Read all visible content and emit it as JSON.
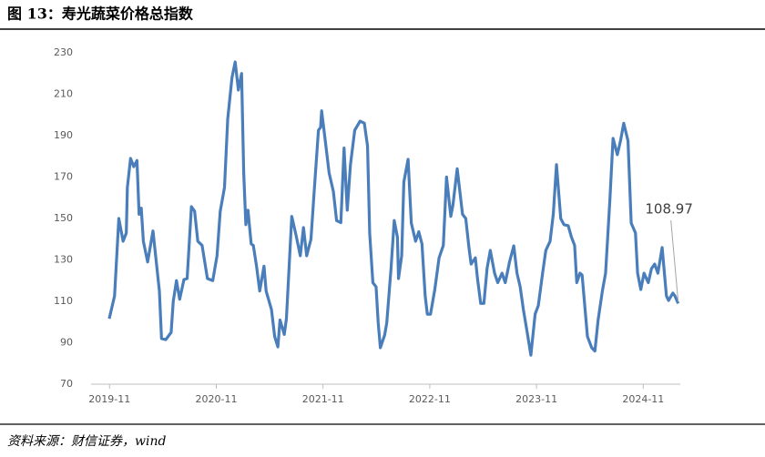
{
  "chart_data": {
    "type": "line",
    "title": "图 13：寿光蔬菜价格总指数",
    "source": "资料来源：财信证券，wind",
    "x": [
      2019.83,
      2019.88,
      2019.92,
      2019.96,
      2019.99,
      2020.0,
      2020.03,
      2020.06,
      2020.09,
      2020.11,
      2020.13,
      2020.15,
      2020.19,
      2020.24,
      2020.3,
      2020.32,
      2020.36,
      2020.41,
      2020.43,
      2020.46,
      2020.49,
      2020.53,
      2020.56,
      2020.6,
      2020.63,
      2020.66,
      2020.7,
      2020.75,
      2020.8,
      2020.84,
      2020.87,
      2020.91,
      2020.94,
      2020.98,
      2021.01,
      2021.04,
      2021.07,
      2021.09,
      2021.11,
      2021.13,
      2021.16,
      2021.18,
      2021.21,
      2021.24,
      2021.28,
      2021.3,
      2021.35,
      2021.38,
      2021.41,
      2021.43,
      2021.47,
      2021.49,
      2021.54,
      2021.58,
      2021.62,
      2021.65,
      2021.68,
      2021.72,
      2021.75,
      2021.79,
      2021.81,
      2021.82,
      2021.86,
      2021.89,
      2021.93,
      2021.96,
      2022.0,
      2022.03,
      2022.06,
      2022.09,
      2022.13,
      2022.18,
      2022.22,
      2022.25,
      2022.27,
      2022.3,
      2022.33,
      2022.35,
      2022.37,
      2022.41,
      2022.43,
      2022.47,
      2022.5,
      2022.53,
      2022.54,
      2022.57,
      2022.59,
      2022.63,
      2022.66,
      2022.7,
      2022.73,
      2022.76,
      2022.79,
      2022.81,
      2022.84,
      2022.88,
      2022.92,
      2022.96,
      2022.99,
      2023.03,
      2023.05,
      2023.09,
      2023.14,
      2023.17,
      2023.2,
      2023.22,
      2023.26,
      2023.28,
      2023.31,
      2023.34,
      2023.37,
      2023.4,
      2023.44,
      2023.47,
      2023.51,
      2023.54,
      2023.58,
      2023.62,
      2023.65,
      2023.68,
      2023.71,
      2023.75,
      2023.78,
      2023.82,
      2023.85,
      2023.89,
      2023.92,
      2023.96,
      2023.99,
      2024.02,
      2024.06,
      2024.09,
      2024.13,
      2024.16,
      2024.19,
      2024.21,
      2024.24,
      2024.26,
      2024.31,
      2024.35,
      2024.38,
      2024.41,
      2024.45,
      2024.48,
      2024.52,
      2024.55,
      2024.59,
      2024.62,
      2024.65,
      2024.69,
      2024.72,
      2024.76,
      2024.78,
      2024.81,
      2024.84,
      2024.88,
      2024.91,
      2024.94,
      2024.97,
      2025.01,
      2025.05,
      2025.07,
      2025.11,
      2025.13,
      2025.16
    ],
    "series": [
      {
        "color": "#4a7ebb",
        "values": [
          101.6,
          112.6,
          150,
          139,
          143,
          165,
          179,
          175,
          178,
          152,
          155,
          139,
          129,
          144,
          115,
          92,
          91.5,
          95,
          110,
          120,
          111,
          120.5,
          121,
          155.7,
          153.5,
          139,
          137,
          121,
          120,
          132,
          153.5,
          165,
          198,
          218,
          225.6,
          212,
          220,
          172,
          147,
          154,
          137.7,
          137,
          127,
          115,
          127,
          115,
          106,
          93,
          88,
          101,
          94,
          101.6,
          151,
          142,
          132,
          145.6,
          132,
          140,
          163,
          192.6,
          194,
          202,
          185,
          172,
          163,
          149,
          148,
          184,
          154,
          176,
          192.6,
          197,
          196,
          185,
          143,
          119,
          117,
          99.5,
          87.6,
          93.7,
          99.5,
          125.8,
          149,
          141,
          121,
          132,
          167.6,
          178.6,
          147.8,
          139,
          143.6,
          137.7,
          112.6,
          103.8,
          103.8,
          115.7,
          131,
          137,
          170,
          151,
          156.5,
          174,
          152,
          150,
          136,
          128,
          131,
          121,
          109,
          109,
          126,
          134.6,
          123.6,
          119,
          123.6,
          119,
          129,
          136.8,
          123.6,
          117,
          106,
          93.7,
          84,
          103.8,
          108,
          123.6,
          134.6,
          139,
          152,
          176,
          150,
          147,
          146.5,
          141,
          137,
          119,
          123.6,
          122.7,
          93,
          87.6,
          86,
          101,
          115,
          123.6,
          158.7,
          188.7,
          180.8,
          187.5,
          196,
          187.5,
          147.8,
          143,
          123.6,
          115.7,
          123.6,
          119,
          125.8,
          128,
          123.6,
          136,
          112.6,
          110.4,
          114,
          112.6,
          108.97
        ]
      }
    ],
    "xlim": [
      2019.66,
      2025.18
    ],
    "xticks": [
      {
        "value": 2019.833,
        "label": "2019-11"
      },
      {
        "value": 2020.833,
        "label": "2020-11"
      },
      {
        "value": 2021.833,
        "label": "2021-11"
      },
      {
        "value": 2022.833,
        "label": "2022-11"
      },
      {
        "value": 2023.833,
        "label": "2023-11"
      },
      {
        "value": 2024.833,
        "label": "2024-11"
      }
    ],
    "ylim": [
      70,
      230
    ],
    "yticks": [
      70,
      90,
      110,
      130,
      150,
      170,
      190,
      210,
      230
    ],
    "grid": false
  }
}
